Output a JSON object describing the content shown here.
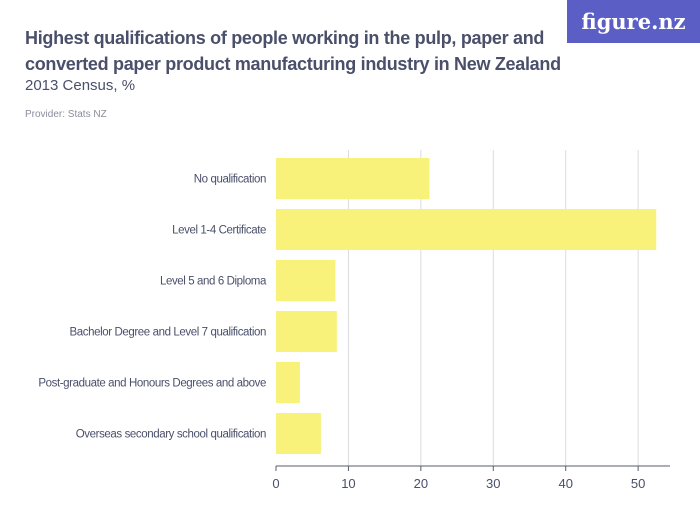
{
  "header": {
    "title": "Highest qualifications of people working in the pulp, paper and converted paper product manufacturing industry in New Zealand",
    "subtitle": "2013 Census, %",
    "provider": "Provider: Stats NZ",
    "logo": "figure.nz"
  },
  "chart_data": {
    "type": "bar",
    "orientation": "horizontal",
    "title": "Highest qualifications of people working in the pulp, paper and converted paper product manufacturing industry in New Zealand",
    "subtitle": "2013 Census, %",
    "categories": [
      "No qualification",
      "Level 1-4 Certificate",
      "Level 5 and 6 Diploma",
      "Bachelor Degree and Level 7 qualification",
      "Post-graduate and Honours Degrees and above",
      "Overseas secondary school qualification"
    ],
    "values": [
      21.2,
      52.5,
      8.2,
      8.4,
      3.3,
      6.2
    ],
    "xlim": [
      0,
      54.4
    ],
    "xticks": [
      "0",
      "10",
      "20",
      "30",
      "40",
      "50"
    ],
    "grid": true,
    "colors": {
      "bar": "#f8f17a",
      "grid": "#dcdcdc",
      "axis": "#5a5d6e",
      "logo_bg": "#5b5ec5"
    }
  }
}
